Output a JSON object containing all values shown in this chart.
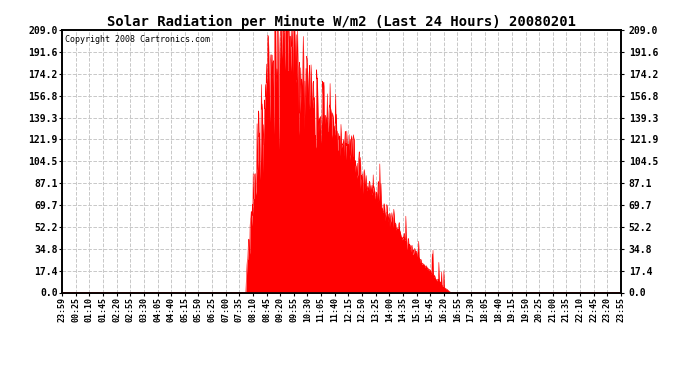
{
  "title": "Solar Radiation per Minute W/m2 (Last 24 Hours) 20080201",
  "copyright_text": "Copyright 2008 Cartronics.com",
  "yticks": [
    0.0,
    17.4,
    34.8,
    52.2,
    69.7,
    87.1,
    104.5,
    121.9,
    139.3,
    156.8,
    174.2,
    191.6,
    209.0
  ],
  "ymax": 209.0,
  "ymin": 0.0,
  "fill_color": "#FF0000",
  "line_color": "#FF0000",
  "background_color": "#FFFFFF",
  "grid_color": "#C8C8C8",
  "dashed_zero_color": "#FF0000",
  "xtick_labels": [
    "23:59",
    "00:25",
    "01:10",
    "01:45",
    "02:20",
    "02:55",
    "03:30",
    "04:05",
    "04:40",
    "05:15",
    "05:50",
    "06:25",
    "07:00",
    "07:35",
    "08:10",
    "08:45",
    "09:20",
    "09:55",
    "10:30",
    "11:05",
    "11:40",
    "12:15",
    "12:50",
    "13:25",
    "14:00",
    "14:35",
    "15:10",
    "15:45",
    "16:20",
    "16:55",
    "17:30",
    "18:05",
    "18:40",
    "19:15",
    "19:50",
    "20:25",
    "21:00",
    "21:35",
    "22:10",
    "22:45",
    "23:20",
    "23:55"
  ],
  "num_points": 1440,
  "sunrise_minute": 473,
  "sunset_minute": 1001,
  "peak_minute": 555,
  "peak_value": 209.0
}
